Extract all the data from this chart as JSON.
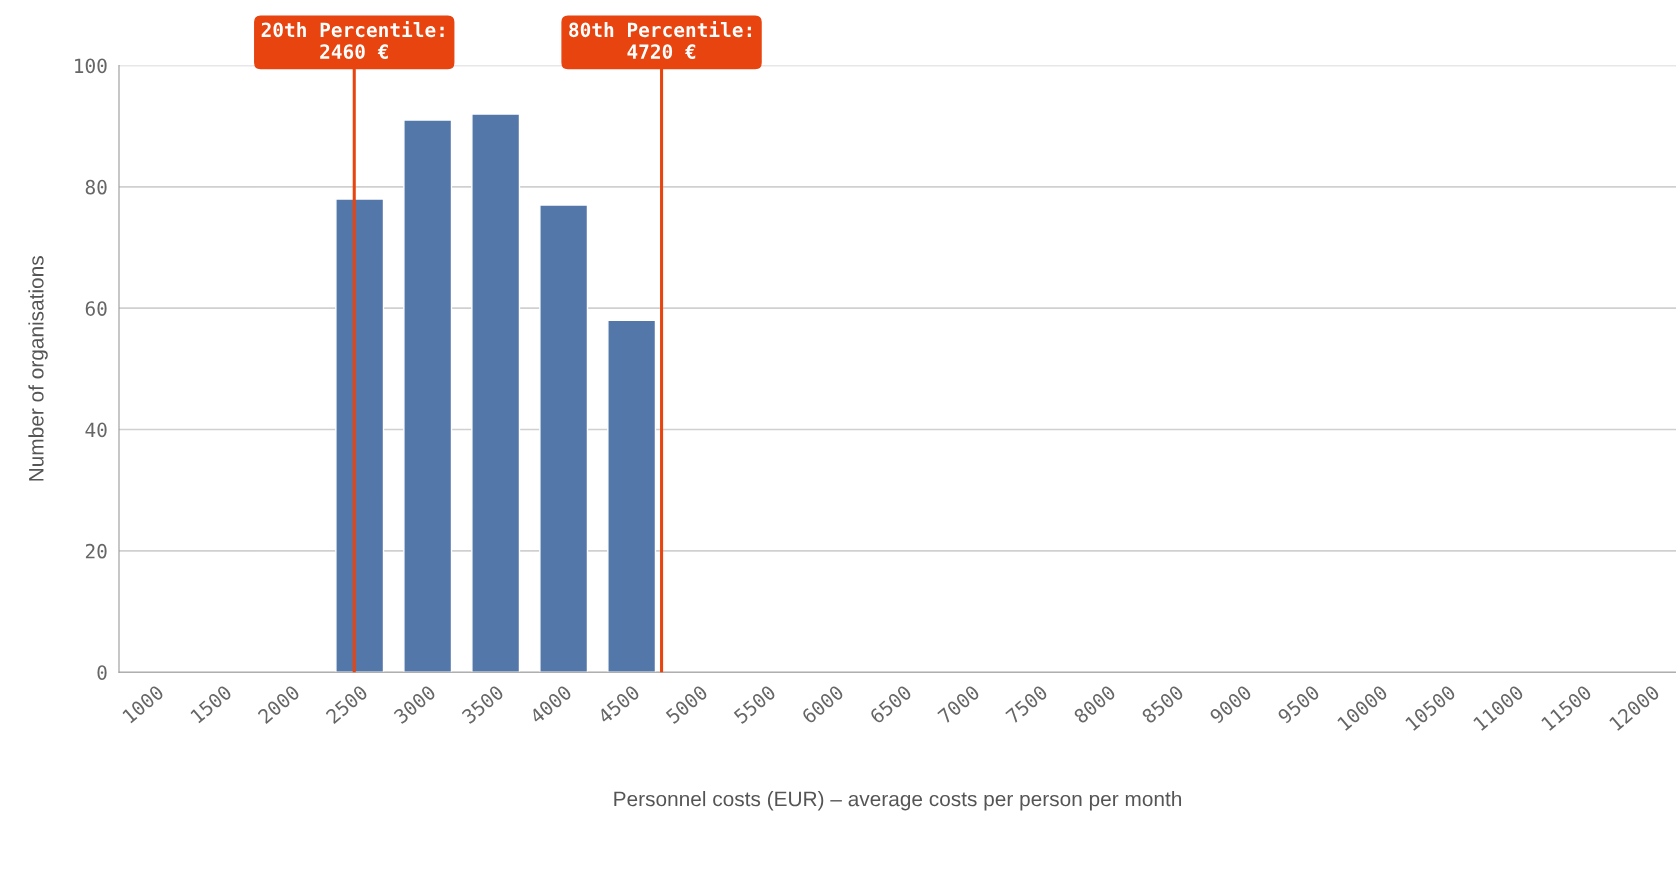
{
  "chart_data": {
    "type": "bar",
    "xlabel": "Personnel costs (EUR) – average costs per person per month",
    "ylabel": "Number of organisations",
    "x": [
      1000,
      1500,
      2000,
      2500,
      3000,
      3500,
      4000,
      4500,
      5000,
      5500,
      6000,
      6500,
      7000,
      7500,
      8000,
      8500,
      9000,
      9500,
      10000,
      10500,
      11000,
      11500,
      12000
    ],
    "values": [
      0,
      0,
      0,
      78,
      91,
      92,
      77,
      58,
      0,
      0,
      0,
      0,
      0,
      0,
      0,
      0,
      0,
      0,
      0,
      0,
      0,
      0,
      0
    ],
    "xlim": [
      730,
      12180
    ],
    "color": "#5377a9",
    "xticks": [
      1000,
      1500,
      2000,
      2500,
      3000,
      3500,
      4000,
      4500,
      5000,
      5500,
      6000,
      6500,
      7000,
      7500,
      8000,
      8500,
      9000,
      9500,
      10000,
      10500,
      11000,
      11500,
      12000
    ],
    "ylim": [
      0,
      100
    ],
    "yticks": [
      0,
      20,
      40,
      60,
      80,
      100
    ],
    "grid": "y",
    "ref_lines": [
      {
        "axis": "x",
        "value": 2460,
        "label": "20th Percentile:\n2460 €",
        "color": "#e8440f"
      },
      {
        "axis": "x",
        "value": 4720,
        "label": "80th Percentile:\n4720 €",
        "color": "#e8440f"
      }
    ]
  }
}
